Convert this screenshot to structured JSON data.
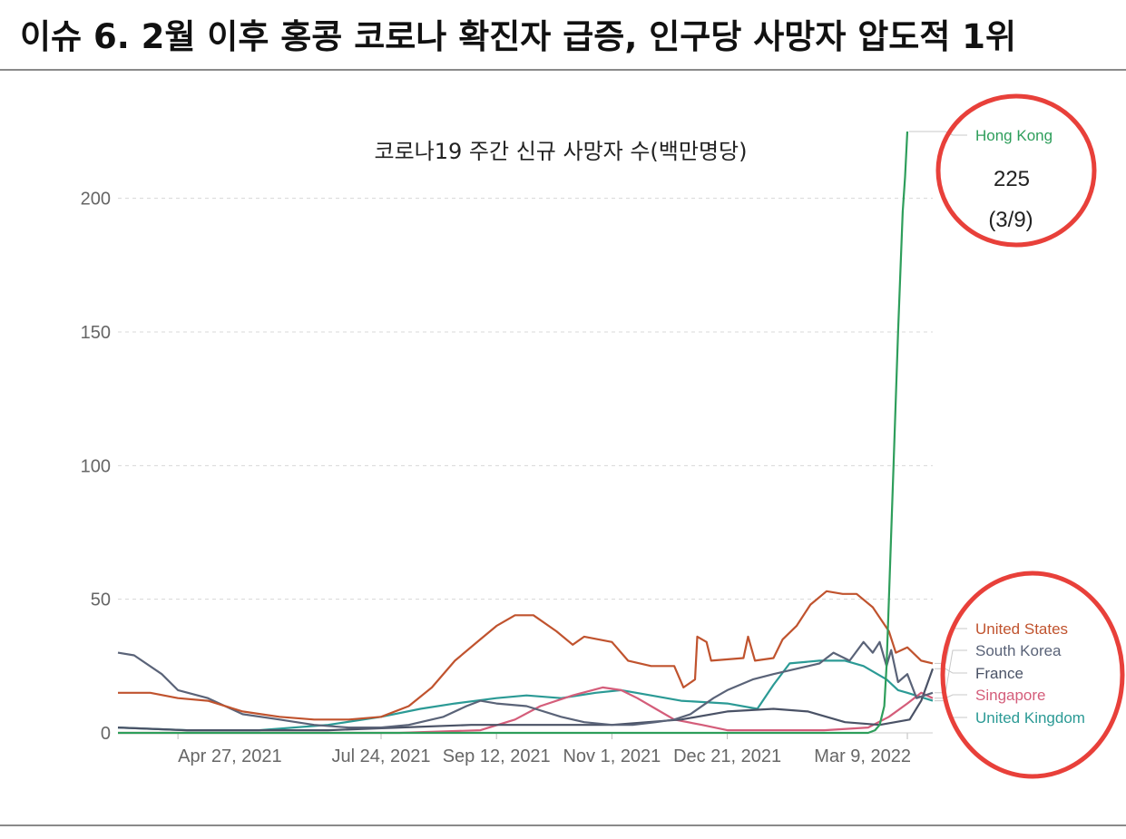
{
  "page": {
    "title": "이슈 6. 2월 이후 홍콩 코로나 확진자 급증, 인구당 사망자 압도적 1위"
  },
  "chart_data": {
    "type": "line",
    "title": "코로나19 주간 신규 사망자 수(백만명당)",
    "xlabel": "",
    "ylabel": "",
    "ylim": [
      0,
      225
    ],
    "y_ticks": [
      0,
      50,
      100,
      150,
      200
    ],
    "x_range": [
      "2021-04-01",
      "2022-03-20"
    ],
    "x_ticks": [
      {
        "date": "2021-04-27",
        "label": "Apr 27, 2021"
      },
      {
        "date": "2021-07-24",
        "label": "Jul 24, 2021"
      },
      {
        "date": "2021-09-12",
        "label": "Sep 12, 2021"
      },
      {
        "date": "2021-11-01",
        "label": "Nov 1, 2021"
      },
      {
        "date": "2021-12-21",
        "label": "Dec 21, 2021"
      },
      {
        "date": "2022-03-09",
        "label": "Mar 9, 2022"
      }
    ],
    "grid": true,
    "legend": "right",
    "series": [
      {
        "name": "Hong Kong",
        "color": "#2e9e5b",
        "points": [
          [
            "2021-04-01",
            0
          ],
          [
            "2022-02-20",
            0
          ],
          [
            "2022-02-23",
            1
          ],
          [
            "2022-02-25",
            3
          ],
          [
            "2022-02-27",
            10
          ],
          [
            "2022-02-28",
            25
          ],
          [
            "2022-03-01",
            50
          ],
          [
            "2022-03-03",
            100
          ],
          [
            "2022-03-05",
            150
          ],
          [
            "2022-03-07",
            195
          ],
          [
            "2022-03-08",
            208
          ],
          [
            "2022-03-09",
            225
          ]
        ]
      },
      {
        "name": "United States",
        "color": "#c0532e",
        "points": [
          [
            "2021-04-01",
            15
          ],
          [
            "2021-04-15",
            15
          ],
          [
            "2021-04-27",
            13
          ],
          [
            "2021-05-10",
            12
          ],
          [
            "2021-05-25",
            8
          ],
          [
            "2021-06-10",
            6
          ],
          [
            "2021-06-25",
            5
          ],
          [
            "2021-07-10",
            5
          ],
          [
            "2021-07-24",
            6
          ],
          [
            "2021-08-05",
            10
          ],
          [
            "2021-08-15",
            17
          ],
          [
            "2021-08-25",
            27
          ],
          [
            "2021-09-05",
            35
          ],
          [
            "2021-09-12",
            40
          ],
          [
            "2021-09-20",
            44
          ],
          [
            "2021-09-28",
            44
          ],
          [
            "2021-10-08",
            38
          ],
          [
            "2021-10-15",
            33
          ],
          [
            "2021-10-20",
            36
          ],
          [
            "2021-11-01",
            34
          ],
          [
            "2021-11-08",
            27
          ],
          [
            "2021-11-18",
            25
          ],
          [
            "2021-11-28",
            25
          ],
          [
            "2021-12-02",
            17
          ],
          [
            "2021-12-07",
            20
          ],
          [
            "2021-12-08",
            36
          ],
          [
            "2021-12-12",
            34
          ],
          [
            "2021-12-14",
            27
          ],
          [
            "2021-12-28",
            28
          ],
          [
            "2021-12-30",
            36
          ],
          [
            "2022-01-02",
            27
          ],
          [
            "2022-01-10",
            28
          ],
          [
            "2022-01-14",
            35
          ],
          [
            "2022-01-20",
            40
          ],
          [
            "2022-01-26",
            48
          ],
          [
            "2022-02-02",
            53
          ],
          [
            "2022-02-09",
            52
          ],
          [
            "2022-02-15",
            52
          ],
          [
            "2022-02-22",
            47
          ],
          [
            "2022-03-01",
            38
          ],
          [
            "2022-03-04",
            30
          ],
          [
            "2022-03-09",
            32
          ],
          [
            "2022-03-15",
            27
          ],
          [
            "2022-03-20",
            26
          ]
        ]
      },
      {
        "name": "South Korea",
        "color": "#5a6378",
        "points": [
          [
            "2021-04-01",
            30
          ],
          [
            "2021-04-08",
            29
          ],
          [
            "2021-04-20",
            22
          ],
          [
            "2021-04-27",
            16
          ],
          [
            "2021-05-10",
            13
          ],
          [
            "2021-05-25",
            7
          ],
          [
            "2021-06-10",
            5
          ],
          [
            "2021-06-25",
            3
          ],
          [
            "2021-07-10",
            2
          ],
          [
            "2021-07-24",
            2
          ],
          [
            "2021-08-05",
            3
          ],
          [
            "2021-08-20",
            6
          ],
          [
            "2021-08-30",
            10
          ],
          [
            "2021-09-05",
            12
          ],
          [
            "2021-09-12",
            11
          ],
          [
            "2021-09-25",
            10
          ],
          [
            "2021-10-10",
            6
          ],
          [
            "2021-10-20",
            4
          ],
          [
            "2021-11-01",
            3
          ],
          [
            "2021-11-10",
            3
          ],
          [
            "2021-11-20",
            4
          ],
          [
            "2021-11-28",
            5
          ],
          [
            "2021-12-05",
            7
          ],
          [
            "2021-12-15",
            13
          ],
          [
            "2021-12-21",
            16
          ],
          [
            "2022-01-01",
            20
          ],
          [
            "2022-01-10",
            22
          ],
          [
            "2022-01-20",
            24
          ],
          [
            "2022-01-30",
            26
          ],
          [
            "2022-02-05",
            30
          ],
          [
            "2022-02-12",
            27
          ],
          [
            "2022-02-18",
            34
          ],
          [
            "2022-02-22",
            30
          ],
          [
            "2022-02-25",
            34
          ],
          [
            "2022-02-28",
            25
          ],
          [
            "2022-03-02",
            31
          ],
          [
            "2022-03-05",
            19
          ],
          [
            "2022-03-09",
            22
          ],
          [
            "2022-03-13",
            13
          ],
          [
            "2022-03-20",
            15
          ]
        ]
      },
      {
        "name": "France",
        "color": "#4a5266",
        "points": [
          [
            "2021-04-01",
            2
          ],
          [
            "2021-05-01",
            1
          ],
          [
            "2021-06-01",
            1
          ],
          [
            "2021-07-01",
            1
          ],
          [
            "2021-08-01",
            2
          ],
          [
            "2021-09-01",
            3
          ],
          [
            "2021-10-01",
            3
          ],
          [
            "2021-11-01",
            3
          ],
          [
            "2021-12-01",
            5
          ],
          [
            "2021-12-21",
            8
          ],
          [
            "2022-01-10",
            9
          ],
          [
            "2022-01-25",
            8
          ],
          [
            "2022-02-10",
            4
          ],
          [
            "2022-02-25",
            3
          ],
          [
            "2022-03-10",
            5
          ],
          [
            "2022-03-15",
            12
          ],
          [
            "2022-03-20",
            24
          ]
        ]
      },
      {
        "name": "Singapore",
        "color": "#d45d7a",
        "points": [
          [
            "2021-04-01",
            0
          ],
          [
            "2021-06-01",
            0
          ],
          [
            "2021-08-01",
            0
          ],
          [
            "2021-09-05",
            1
          ],
          [
            "2021-09-20",
            5
          ],
          [
            "2021-10-01",
            10
          ],
          [
            "2021-10-15",
            14
          ],
          [
            "2021-10-28",
            17
          ],
          [
            "2021-11-05",
            16
          ],
          [
            "2021-11-12",
            13
          ],
          [
            "2021-11-20",
            9
          ],
          [
            "2021-11-28",
            5
          ],
          [
            "2021-12-10",
            3
          ],
          [
            "2021-12-21",
            1
          ],
          [
            "2022-01-10",
            1
          ],
          [
            "2022-02-01",
            1
          ],
          [
            "2022-02-20",
            2
          ],
          [
            "2022-03-01",
            6
          ],
          [
            "2022-03-09",
            11
          ],
          [
            "2022-03-15",
            15
          ],
          [
            "2022-03-20",
            13
          ]
        ]
      },
      {
        "name": "United Kingdom",
        "color": "#2b9a95",
        "points": [
          [
            "2021-04-01",
            2
          ],
          [
            "2021-05-01",
            1
          ],
          [
            "2021-06-01",
            1
          ],
          [
            "2021-07-01",
            3
          ],
          [
            "2021-07-24",
            6
          ],
          [
            "2021-08-10",
            9
          ],
          [
            "2021-08-25",
            11
          ],
          [
            "2021-09-12",
            13
          ],
          [
            "2021-09-25",
            14
          ],
          [
            "2021-10-10",
            13
          ],
          [
            "2021-10-25",
            15
          ],
          [
            "2021-11-05",
            16
          ],
          [
            "2021-11-18",
            14
          ],
          [
            "2021-12-01",
            12
          ],
          [
            "2021-12-21",
            11
          ],
          [
            "2022-01-03",
            9
          ],
          [
            "2022-01-10",
            18
          ],
          [
            "2022-01-17",
            26
          ],
          [
            "2022-01-30",
            27
          ],
          [
            "2022-02-10",
            27
          ],
          [
            "2022-02-18",
            25
          ],
          [
            "2022-02-28",
            20
          ],
          [
            "2022-03-05",
            16
          ],
          [
            "2022-03-09",
            15
          ],
          [
            "2022-03-20",
            12
          ]
        ]
      }
    ],
    "annotations": [
      {
        "label": "Hong Kong",
        "value": "225",
        "note": "(3/9)"
      }
    ]
  }
}
